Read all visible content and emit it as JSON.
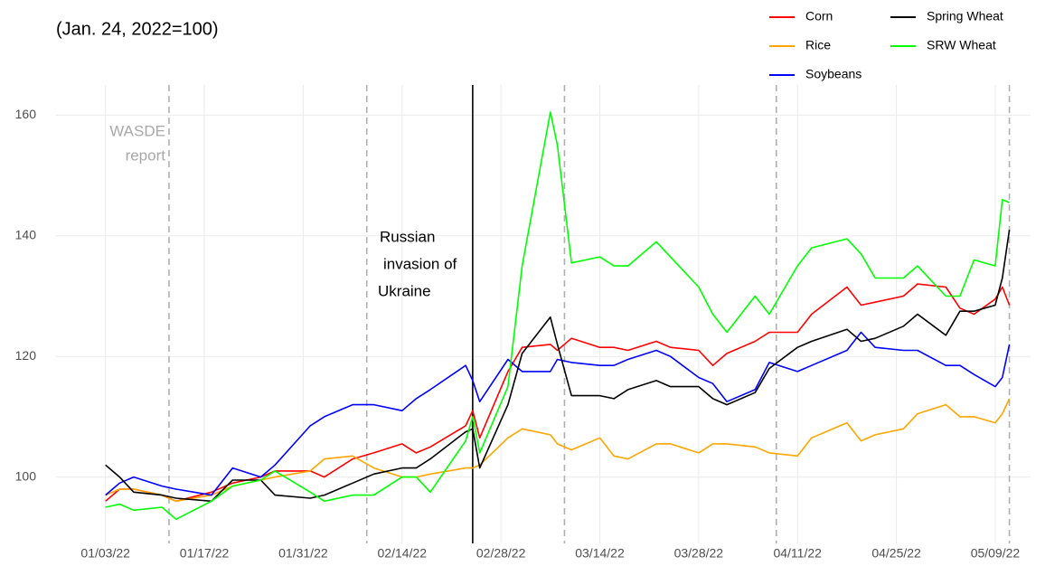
{
  "chart_data": {
    "type": "line",
    "subtitle": "(Jan. 24, 2022=100)",
    "x": [
      "01/03/22",
      "01/05/22",
      "01/07/22",
      "01/11/22",
      "01/13/22",
      "01/18/22",
      "01/21/22",
      "01/25/22",
      "01/27/22",
      "02/01/22",
      "02/03/22",
      "02/07/22",
      "02/10/22",
      "02/14/22",
      "02/16/22",
      "02/18/22",
      "02/23/22",
      "02/24/22",
      "02/25/22",
      "03/01/22",
      "03/03/22",
      "03/07/22",
      "03/08/22",
      "03/10/22",
      "03/14/22",
      "03/16/22",
      "03/18/22",
      "03/22/22",
      "03/24/22",
      "03/28/22",
      "03/30/22",
      "04/01/22",
      "04/05/22",
      "04/07/22",
      "04/11/22",
      "04/13/22",
      "04/18/22",
      "04/20/22",
      "04/22/22",
      "04/26/22",
      "04/28/22",
      "05/02/22",
      "05/04/22",
      "05/06/22",
      "05/09/22",
      "05/10/22",
      "05/11/22"
    ],
    "series": [
      {
        "name": "Corn",
        "color": "#ff0000",
        "values": [
          96,
          98,
          98,
          97,
          96,
          97.5,
          99,
          100,
          101,
          101,
          100,
          103,
          104,
          105.5,
          104,
          105,
          108.5,
          111,
          106.5,
          117.5,
          121.5,
          122,
          121,
          123,
          121.5,
          121.5,
          121,
          122.5,
          121.5,
          121,
          118.5,
          120.5,
          122.5,
          124,
          124,
          127,
          131.5,
          128.5,
          129,
          130,
          132,
          131.5,
          128,
          127,
          129.5,
          131.5,
          128.5
        ]
      },
      {
        "name": "Rice",
        "color": "#ffa500",
        "values": [
          97,
          98,
          98,
          97,
          96,
          97,
          98.5,
          99.5,
          100,
          101,
          103,
          103.5,
          101.5,
          100,
          100,
          100.5,
          101.5,
          101.5,
          102,
          106.5,
          108,
          107,
          105.5,
          104.5,
          106.5,
          103.5,
          103,
          105.5,
          105.5,
          104,
          105.5,
          105.5,
          105,
          104,
          103.5,
          106.5,
          109,
          106,
          107,
          108,
          110.5,
          112,
          110,
          110,
          109,
          110.5,
          113
        ]
      },
      {
        "name": "Soybeans",
        "color": "#0000ff",
        "values": [
          97,
          99,
          100,
          98.5,
          98,
          97,
          101.5,
          100,
          102,
          108.5,
          110,
          112,
          112,
          111,
          113,
          114.5,
          118.5,
          116,
          112.5,
          119.5,
          117.5,
          117.5,
          119.5,
          119,
          118.5,
          118.5,
          119.5,
          121,
          120,
          116.5,
          115.5,
          112.5,
          114.5,
          119,
          117.5,
          118.5,
          121,
          124,
          121.5,
          121,
          121,
          118.5,
          118.5,
          117,
          115,
          116.5,
          122
        ]
      },
      {
        "name": "Spring Wheat",
        "color": "#000000",
        "values": [
          102,
          100,
          97.5,
          97,
          96.5,
          96,
          99.5,
          99.5,
          97,
          96.5,
          97,
          99,
          100.5,
          101.5,
          101.5,
          103,
          107.5,
          108,
          101.5,
          112,
          120.5,
          126.5,
          122,
          113.5,
          113.5,
          113,
          114.5,
          116,
          115,
          115,
          113,
          112,
          114,
          118,
          121.5,
          122.5,
          124.5,
          122.5,
          123,
          125,
          127,
          123.5,
          127.5,
          127.5,
          128.5,
          133,
          141
        ]
      },
      {
        "name": "SRW Wheat",
        "color": "#00ff00",
        "values": [
          95,
          95.5,
          94.5,
          95,
          93,
          96,
          98.5,
          99.5,
          101,
          97.5,
          96,
          97,
          97,
          100,
          100,
          97.5,
          106,
          110,
          104,
          115,
          135,
          160.5,
          155,
          135.5,
          136.5,
          135,
          135,
          139,
          136.5,
          131.5,
          127,
          124,
          130,
          127,
          135,
          138,
          139.5,
          137,
          133,
          133,
          135,
          130,
          130,
          136,
          135,
          146,
          145.5
        ]
      }
    ],
    "xlim": [
      "12/27/21",
      "05/14/22"
    ],
    "xticks": [
      "01/03/22",
      "01/17/22",
      "01/31/22",
      "02/14/22",
      "02/28/22",
      "03/14/22",
      "03/28/22",
      "04/11/22",
      "04/25/22",
      "05/09/22"
    ],
    "ylim": [
      89,
      165
    ],
    "yticks": [
      100,
      120,
      140,
      160
    ],
    "grid": true,
    "wasde_dates": [
      "01/12/22",
      "02/09/22",
      "03/09/22",
      "04/08/22",
      "05/11/22"
    ],
    "wasde_label": [
      "WASDE",
      "report"
    ],
    "invasion_date": "02/24/22",
    "invasion_label": [
      "Russian",
      "invasion of",
      "Ukraine"
    ],
    "legend": "top-right"
  }
}
